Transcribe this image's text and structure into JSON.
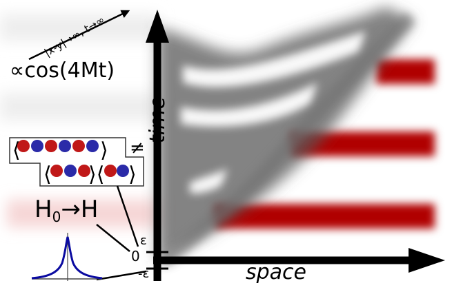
{
  "labels": {
    "cos": "∝cos(4Mt)",
    "limit": "|x-y|→∞, t→∞",
    "time_axis": "time",
    "space_axis": "space",
    "quench": {
      "h0": "H",
      "sub": "0",
      "arrow": "→",
      "h": "H"
    },
    "epsilon_pos": "ε",
    "zero": "0",
    "epsilon_neg": "-ε",
    "neq": "≠"
  },
  "colors": {
    "red_band": "#b00000",
    "light_red_band": "#f5d0d0",
    "lightcone": "#555555",
    "spinor_red": "#c01818",
    "spinor_blue": "#2a2aa8",
    "lorentzian": "#0a0aa0"
  }
}
